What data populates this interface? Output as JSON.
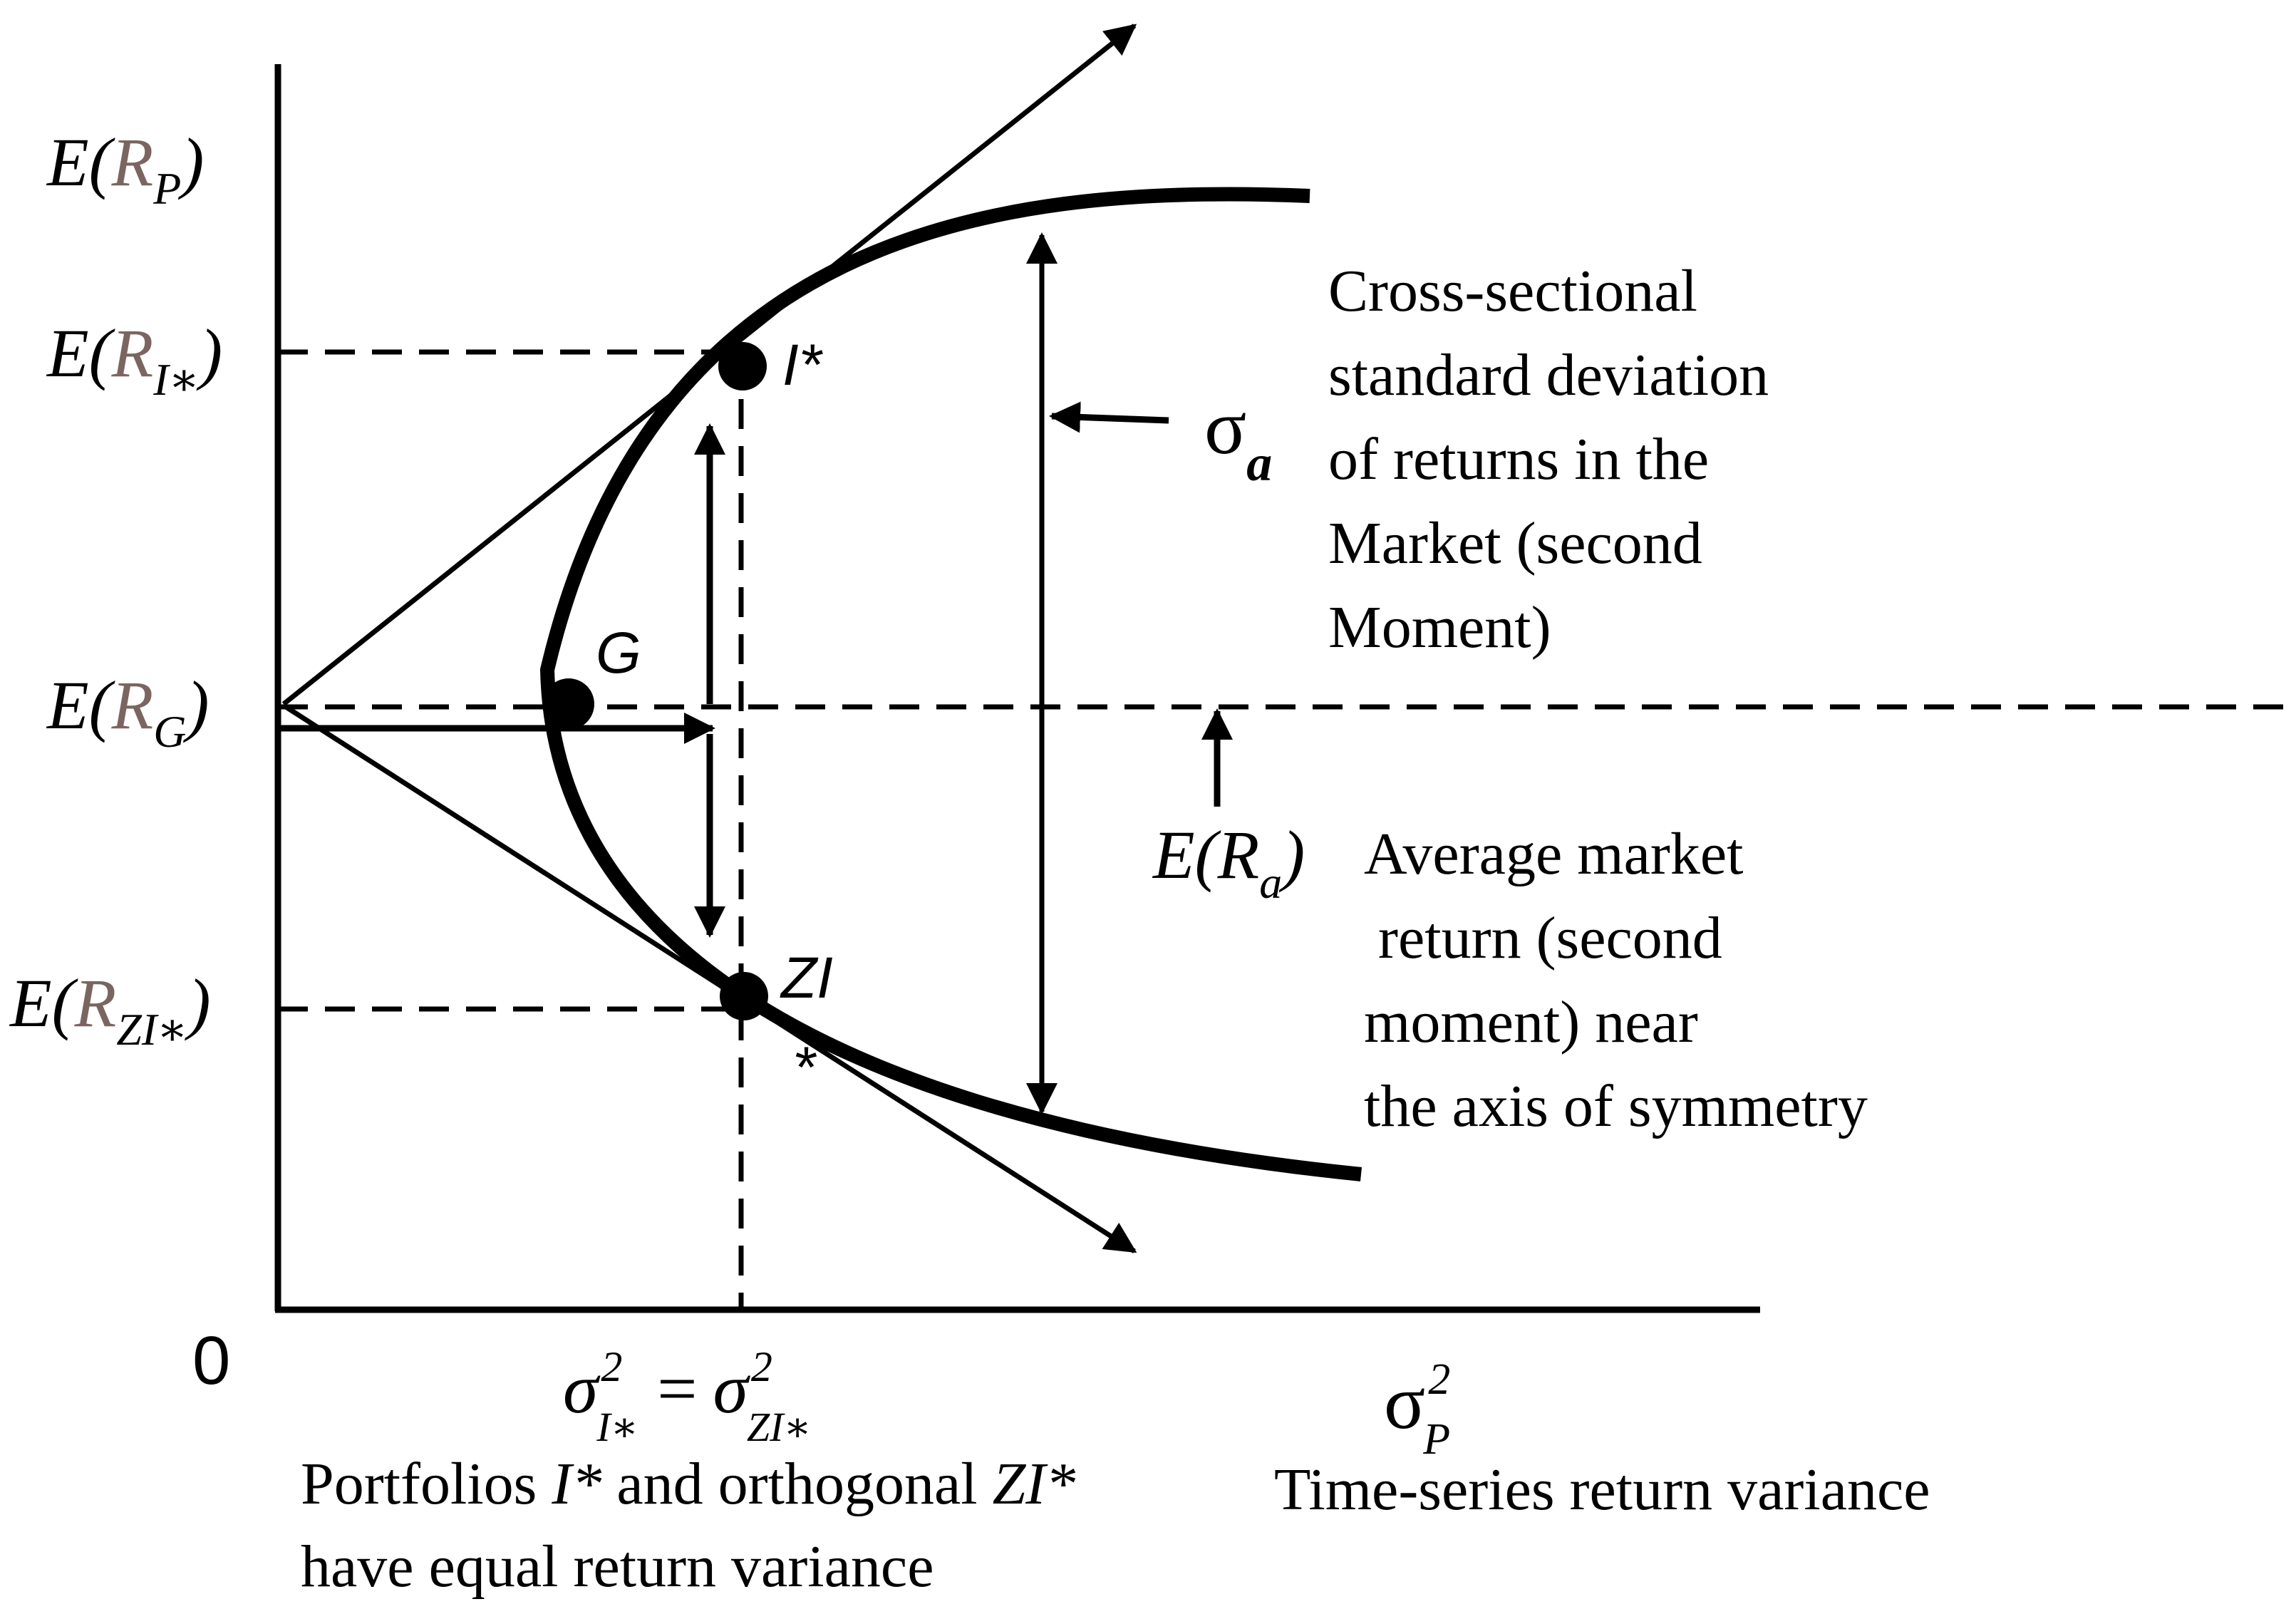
{
  "axes": {
    "origin_label": "0",
    "y_labels": {
      "rp": {
        "pre": "E(",
        "sub_base": "R",
        "sub": "P",
        "post": ")"
      },
      "ri": {
        "pre": "E(",
        "sub_base": "R",
        "sub": "I∗",
        "post": ")"
      },
      "rg": {
        "pre": "E(",
        "sub_base": "R",
        "sub": "G",
        "post": ")"
      },
      "rzi": {
        "pre": "E(",
        "sub_base": "R",
        "sub": "ZI∗",
        "post": ")"
      }
    },
    "x_label": {
      "base": "σ",
      "sup": "2",
      "sub": "P"
    },
    "x_tick": {
      "base1": "σ",
      "sub1": "I∗",
      "eq": "=",
      "base2": "σ",
      "sub2": "ZI∗",
      "sup": "2"
    }
  },
  "points": {
    "i_star": "I*",
    "g": "G",
    "zi_line1": "ZI",
    "zi_line2": "*"
  },
  "sigma_a": {
    "base": "σ",
    "sub": "a"
  },
  "e_ra": {
    "pre": "E(",
    "base": "R",
    "sub": "a",
    "post": ")"
  },
  "annotations": {
    "cross_sectional": [
      "Cross-sectional",
      "standard deviation",
      "of returns in the",
      "Market (second",
      "Moment)"
    ],
    "average_market": [
      "Average market",
      "return (second",
      "moment) near",
      "the axis of symmetry"
    ],
    "portfolios_line1": {
      "a": "Portfolios ",
      "b": "I*",
      "c": " and orthogonal ",
      "d": "ZI*"
    },
    "portfolios_line2": "have equal return variance",
    "time_series": "Time-series return variance"
  },
  "colors": {
    "ink": "#000000",
    "r_label": "#7a6560"
  }
}
